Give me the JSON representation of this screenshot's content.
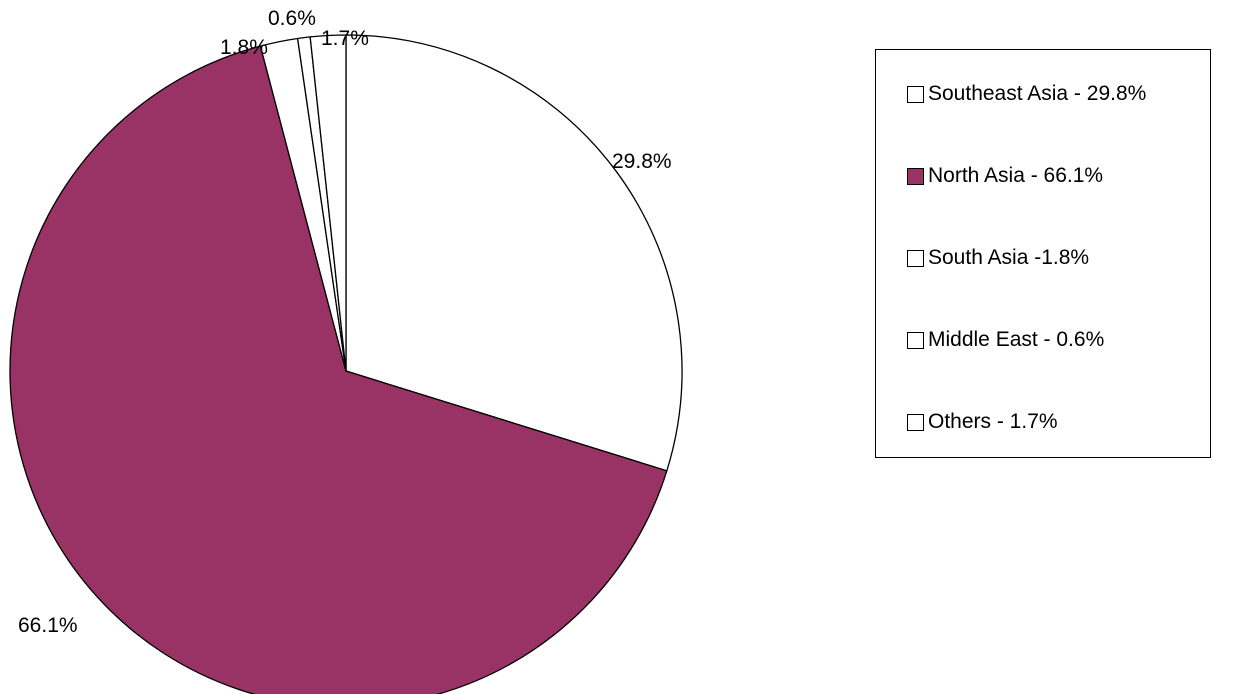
{
  "chart_data": {
    "type": "pie",
    "start_angle_deg": 0,
    "direction": "clockwise",
    "slices": [
      {
        "name": "Southeast Asia",
        "value": 29.8,
        "label": "29.8%",
        "legend": "Southeast Asia - 29.8%",
        "color": "#ffffff"
      },
      {
        "name": "North Asia",
        "value": 66.1,
        "label": "66.1%",
        "legend": "North Asia - 66.1%",
        "color": "#993366"
      },
      {
        "name": "South Asia",
        "value": 1.8,
        "label": "1.8%",
        "legend": "South Asia -1.8%",
        "color": "#ffffff"
      },
      {
        "name": "Middle East",
        "value": 0.6,
        "label": "0.6%",
        "legend": "Middle East - 0.6%",
        "color": "#ffffff"
      },
      {
        "name": "Others",
        "value": 1.7,
        "label": "1.7%",
        "legend": "Others - 1.7%",
        "color": "#ffffff"
      }
    ],
    "legend_position": "right",
    "outline_color": "#000000"
  }
}
